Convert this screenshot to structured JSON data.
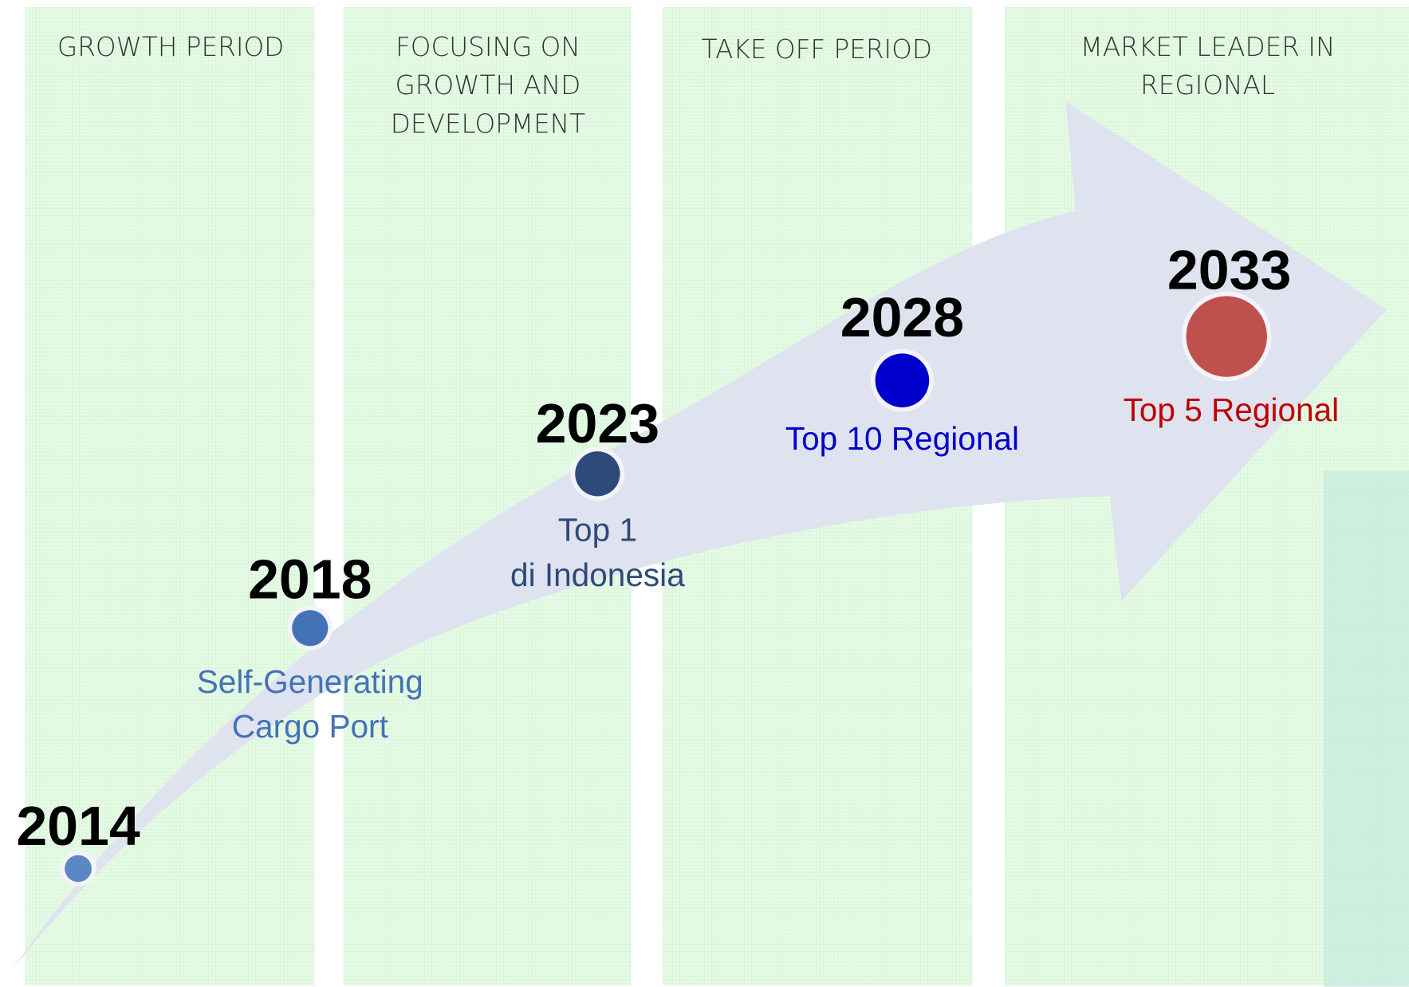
{
  "columns": [
    {
      "title_lines": [
        "GROWTH PERIOD"
      ]
    },
    {
      "title_lines": [
        "FOCUSING ON",
        "GROWTH AND",
        "DEVELOPMENT"
      ]
    },
    {
      "title_lines": [
        "TAKE OFF PERIOD"
      ]
    },
    {
      "title_lines": [
        "MARKET LEADER IN",
        "REGIONAL"
      ]
    }
  ],
  "milestones": [
    {
      "year": "2014",
      "label_lines": [],
      "color": "#5b87c5"
    },
    {
      "year": "2018",
      "label_lines": [
        "Self-Generating",
        "Cargo Port"
      ],
      "color": "#4472b8"
    },
    {
      "year": "2023",
      "label_lines": [
        "Top 1",
        "di Indonesia"
      ],
      "color": "#2e4a7a"
    },
    {
      "year": "2028",
      "label_lines": [
        "Top 10 Regional"
      ],
      "color": "#0000cc"
    },
    {
      "year": "2033",
      "label_lines": [
        "Top 5 Regional"
      ],
      "color": "#c0504d",
      "label_color": "#c00000"
    }
  ]
}
